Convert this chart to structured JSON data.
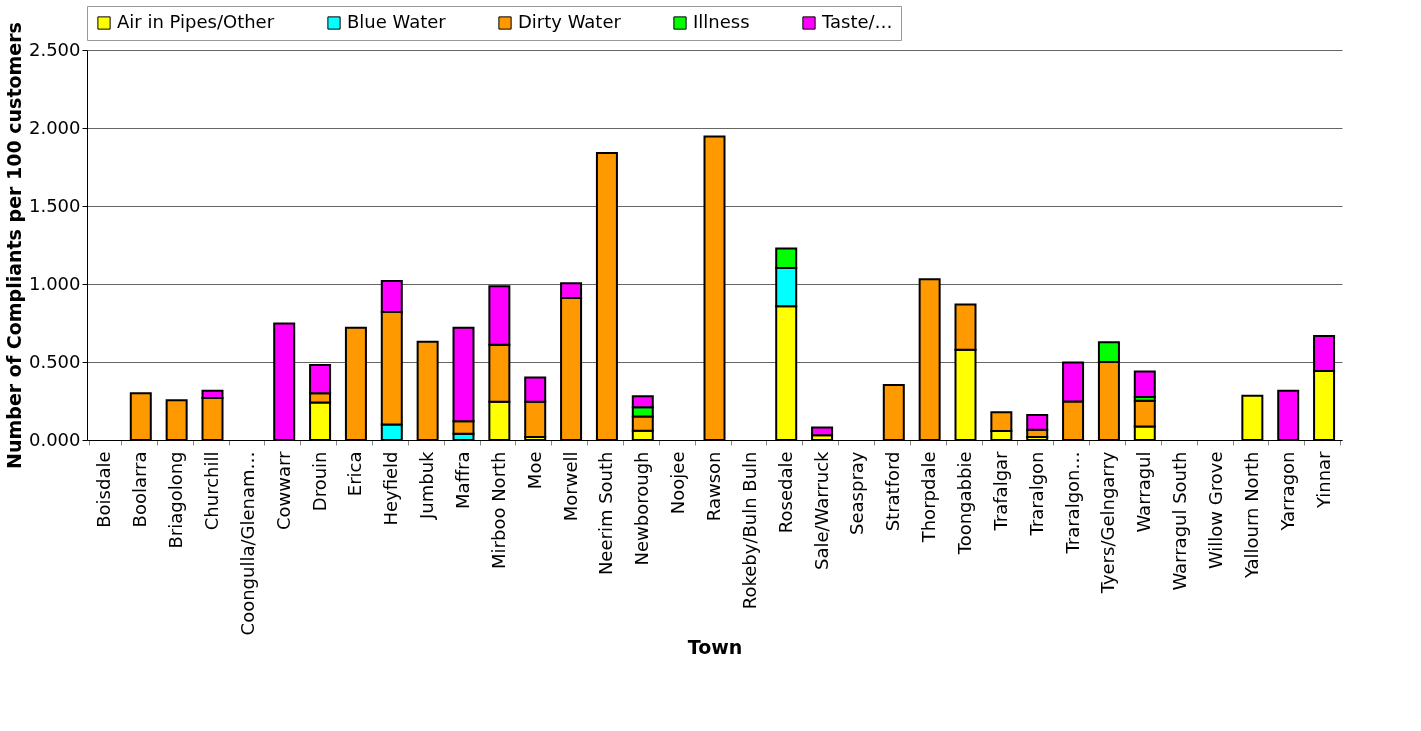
{
  "chart_data": {
    "type": "bar",
    "stacked": true,
    "xlabel": "Town",
    "ylabel": "Number of Compliants per 100 customers",
    "categories": [
      "Boisdale",
      "Boolarra",
      "Briagolong",
      "Churchill",
      "Coongulla/Glenam…",
      "Cowwarr",
      "Drouin",
      "Erica",
      "Heyfield",
      "Jumbuk",
      "Maffra",
      "Mirboo North",
      "Moe",
      "Morwell",
      "Neerim South",
      "Newborough",
      "Noojee",
      "Rawson",
      "Rokeby/Buln Buln",
      "Rosedale",
      "Sale/Warruck",
      "Seaspray",
      "Stratford",
      "Thorpdale",
      "Toongabbie",
      "Trafalgar",
      "Traralgon",
      "Traralgon…",
      "Tyers/Gelngarry",
      "Warragul",
      "Warragul South",
      "Willow Grove",
      "Yallourn North",
      "Yarragon",
      "Yinnar"
    ],
    "series": [
      {
        "name": "Air in Pipes/Other",
        "color": "#ffff00",
        "values": [
          null,
          null,
          null,
          null,
          null,
          null,
          0.24,
          null,
          null,
          null,
          null,
          0.245,
          0.02,
          null,
          null,
          0.06,
          null,
          null,
          null,
          0.857,
          0.03,
          null,
          null,
          null,
          0.578,
          0.058,
          0.02,
          null,
          null,
          0.086,
          null,
          null,
          0.283,
          null,
          0.442
        ]
      },
      {
        "name": "Blue Water",
        "color": "#00ffff",
        "values": [
          null,
          null,
          null,
          null,
          null,
          null,
          null,
          null,
          0.1,
          null,
          0.04,
          null,
          null,
          null,
          null,
          null,
          null,
          null,
          null,
          0.245,
          null,
          null,
          null,
          null,
          null,
          null,
          null,
          null,
          null,
          null,
          null,
          null,
          null,
          null,
          null
        ]
      },
      {
        "name": "Dirty Water",
        "color": "#ff9900",
        "values": [
          null,
          0.3,
          0.255,
          0.27,
          null,
          null,
          0.06,
          0.72,
          0.72,
          0.63,
          0.08,
          0.365,
          0.225,
          0.91,
          1.84,
          0.09,
          null,
          1.945,
          null,
          null,
          null,
          null,
          0.353,
          1.03,
          0.29,
          0.12,
          0.045,
          0.247,
          0.5,
          0.165,
          null,
          null,
          null,
          null,
          null
        ]
      },
      {
        "name": "Illness",
        "color": "#00ff00",
        "values": [
          null,
          null,
          null,
          null,
          null,
          null,
          null,
          null,
          null,
          null,
          null,
          null,
          null,
          null,
          null,
          0.06,
          null,
          null,
          null,
          0.125,
          null,
          null,
          null,
          null,
          null,
          null,
          null,
          null,
          0.127,
          0.025,
          null,
          null,
          null,
          null,
          null
        ]
      },
      {
        "name": "Taste/…",
        "color": "#ff00ff",
        "values": [
          null,
          null,
          null,
          0.045,
          null,
          0.747,
          0.18,
          null,
          0.2,
          null,
          0.6,
          0.375,
          0.155,
          0.095,
          null,
          0.07,
          null,
          null,
          null,
          null,
          0.05,
          null,
          null,
          null,
          null,
          null,
          0.095,
          0.25,
          null,
          0.163,
          null,
          null,
          null,
          0.315,
          0.225
        ]
      }
    ],
    "ylim": [
      0,
      2.5
    ],
    "yticks": [
      {
        "value": 0,
        "label": "0.000"
      },
      {
        "value": 0.5,
        "label": "0.500"
      },
      {
        "value": 1,
        "label": "1.000"
      },
      {
        "value": 1.5,
        "label": "1.500"
      },
      {
        "value": 2,
        "label": "2.000"
      },
      {
        "value": 2.5,
        "label": "2.500"
      }
    ],
    "grid": "y",
    "legend": "top"
  }
}
